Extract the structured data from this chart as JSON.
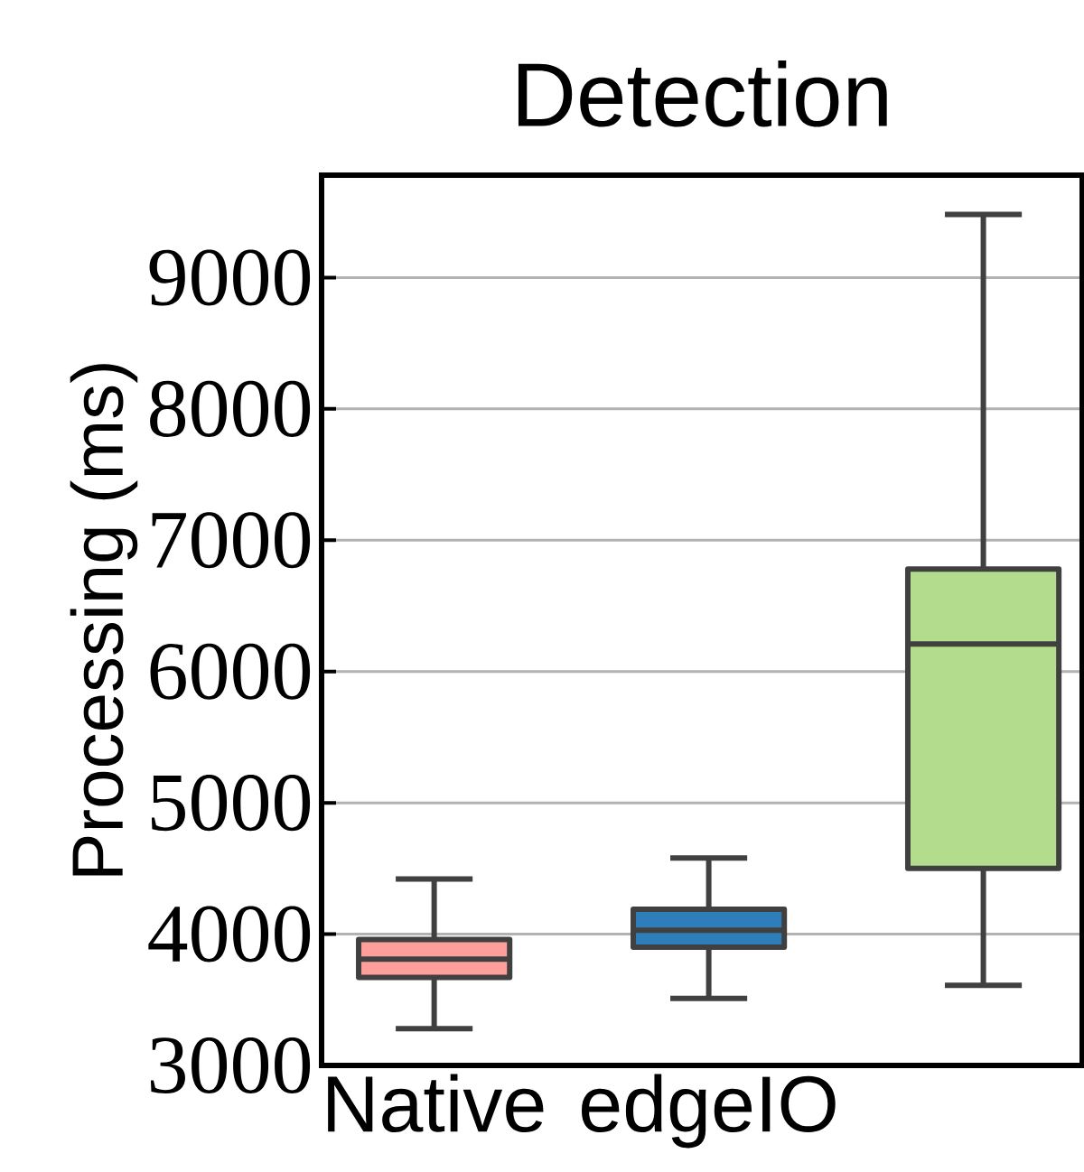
{
  "chart_data": {
    "type": "box",
    "title": "Detection",
    "ylabel": "Processing (ms)",
    "categories": [
      "Native",
      "edgeIO",
      null
    ],
    "colors": [
      "#ff9f9b",
      "#2e7ebb",
      "#b3dc8d"
    ],
    "boxes": [
      {
        "low": 3280,
        "q1": 3670,
        "median": 3810,
        "q3": 3960,
        "high": 4420
      },
      {
        "low": 3510,
        "q1": 3900,
        "median": 4030,
        "q3": 4190,
        "high": 4580
      },
      {
        "low": 3610,
        "q1": 4500,
        "median": 6210,
        "q3": 6780,
        "high": 9480
      }
    ],
    "ylim": [
      3000,
      9780
    ],
    "yticks": [
      3000,
      4000,
      5000,
      6000,
      7000,
      8000,
      9000
    ],
    "grid": "y"
  }
}
